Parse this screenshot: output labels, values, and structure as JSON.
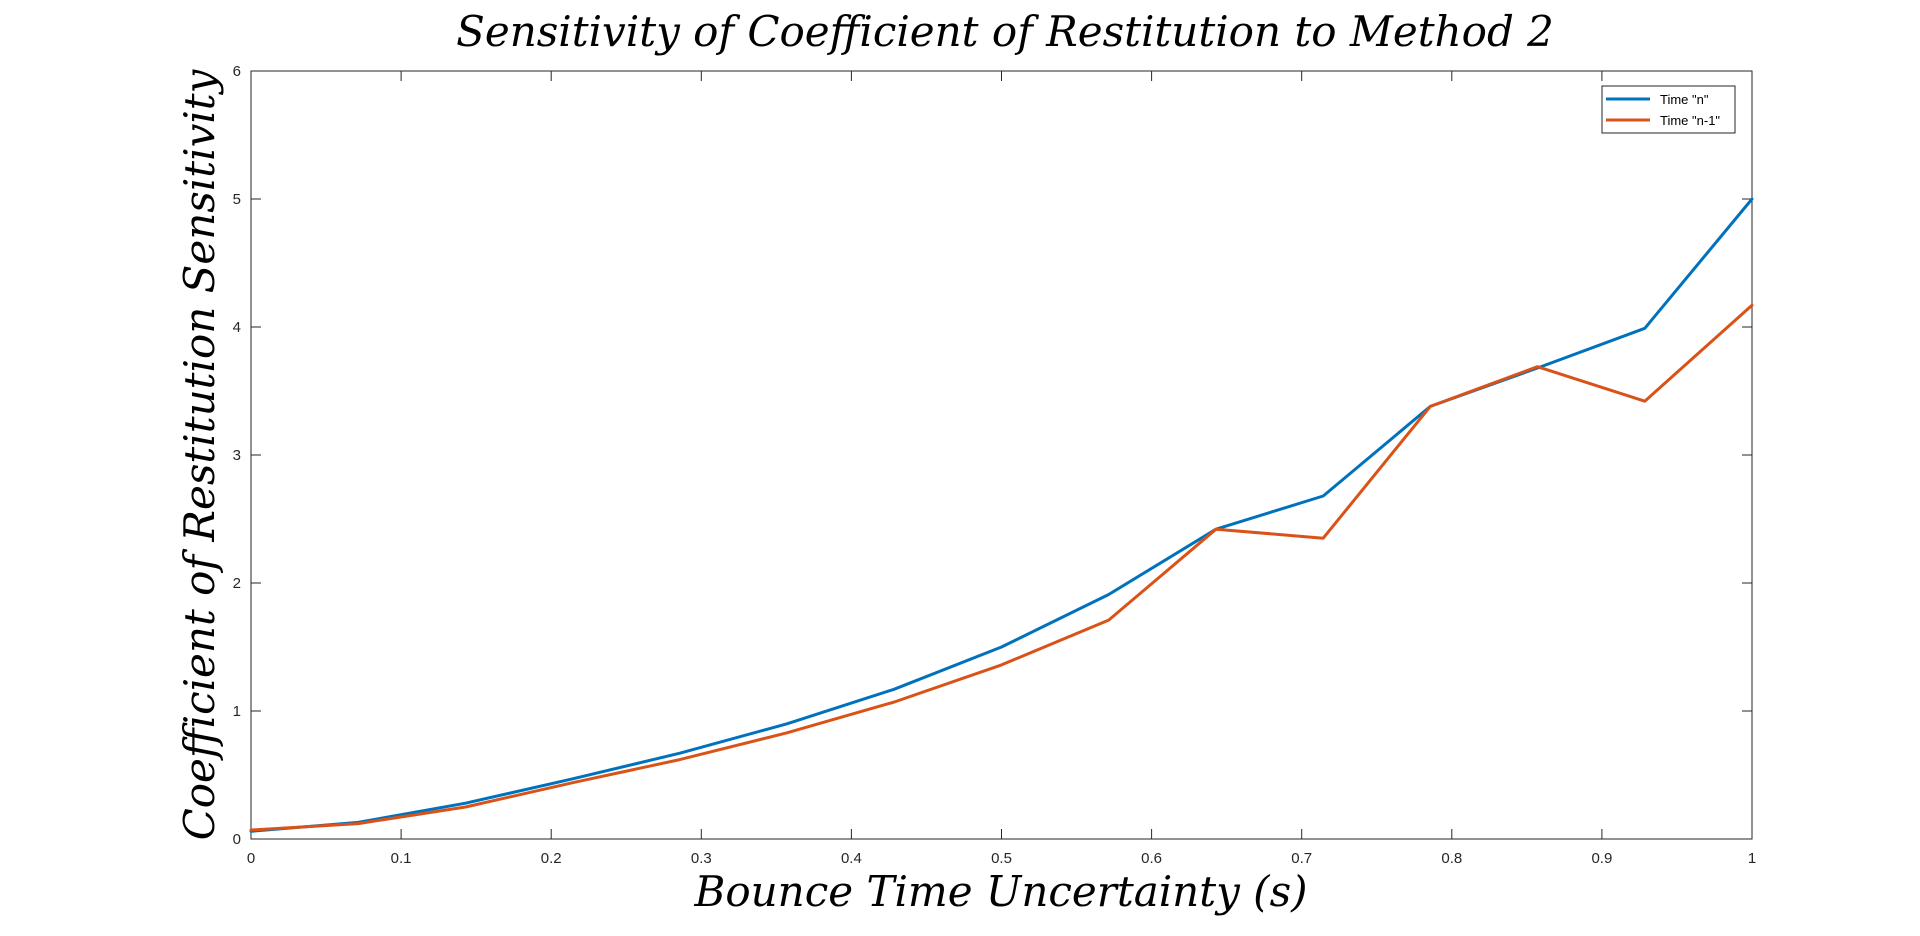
{
  "chart_data": {
    "type": "line",
    "title": "Sensitivity of Coefficient of Restitution to Method 2",
    "xlabel": "Bounce Time Uncertainty (s)",
    "ylabel": "Coefficient of Restitution Sensitivity",
    "xlim": [
      0,
      1
    ],
    "ylim": [
      0,
      6
    ],
    "xticks": [
      0,
      0.1,
      0.2,
      0.3,
      0.4,
      0.5,
      0.6,
      0.7,
      0.8,
      0.9,
      1
    ],
    "xtick_labels": [
      "0",
      "0.1",
      "0.2",
      "0.3",
      "0.4",
      "0.5",
      "0.6",
      "0.7",
      "0.8",
      "0.9",
      "1"
    ],
    "yticks": [
      0,
      1,
      2,
      3,
      4,
      5,
      6
    ],
    "ytick_labels": [
      "0",
      "1",
      "2",
      "3",
      "4",
      "5",
      "6"
    ],
    "grid": false,
    "legend_position": "top-right",
    "x": [
      0,
      0.0714,
      0.1429,
      0.2143,
      0.2857,
      0.3571,
      0.4286,
      0.5,
      0.5714,
      0.6429,
      0.7143,
      0.7857,
      0.8571,
      0.9286,
      1
    ],
    "series": [
      {
        "name": "Time \"n\"",
        "color": "#0072BD",
        "values": [
          0.06,
          0.13,
          0.28,
          0.47,
          0.67,
          0.9,
          1.17,
          1.5,
          1.91,
          2.42,
          2.68,
          3.38,
          3.68,
          3.99,
          5.0
        ]
      },
      {
        "name": "Time \"n-1\"",
        "color": "#D95319",
        "values": [
          0.07,
          0.12,
          0.25,
          0.44,
          0.62,
          0.83,
          1.07,
          1.36,
          1.71,
          2.42,
          2.35,
          3.38,
          3.69,
          3.42,
          4.17
        ]
      }
    ]
  }
}
